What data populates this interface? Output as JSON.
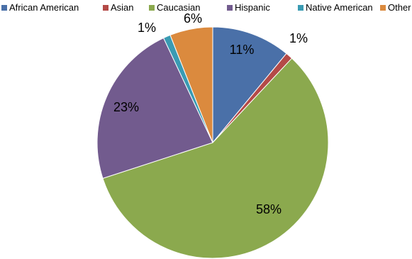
{
  "chart_data": {
    "type": "pie",
    "title": "",
    "legend_position": "top",
    "slices": [
      {
        "name": "African American",
        "value": 11,
        "label": "11%",
        "color": "#4A70A8"
      },
      {
        "name": "Asian",
        "value": 1,
        "label": "1%",
        "color": "#B44A47"
      },
      {
        "name": "Caucasian",
        "value": 58,
        "label": "58%",
        "color": "#8BA94E"
      },
      {
        "name": "Hispanic",
        "value": 23,
        "label": "23%",
        "color": "#725B8E"
      },
      {
        "name": "Native American",
        "value": 1,
        "label": "1%",
        "color": "#3A9BB3"
      },
      {
        "name": "Other",
        "value": 6,
        "label": "6%",
        "color": "#DB8A3E"
      }
    ]
  }
}
